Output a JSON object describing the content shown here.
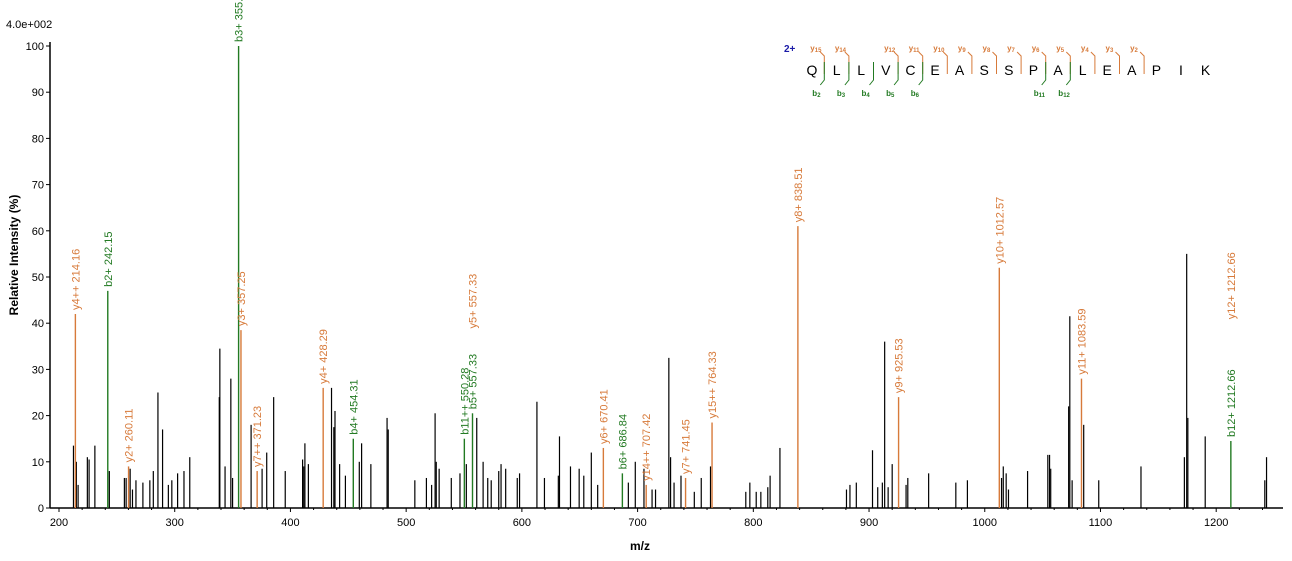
{
  "colors": {
    "black": "#000000",
    "y_ion": "#d77a3a",
    "b_ion": "#227a22",
    "charge": "#1a1aa8"
  },
  "chart_data": {
    "type": "bar",
    "scale_label": "4.0e+002",
    "xlabel": "m/z",
    "ylabel": "Relative   Intensity (%)",
    "xlim": [
      200,
      1250
    ],
    "ylim": [
      0,
      100
    ],
    "xticks": [
      200,
      300,
      400,
      500,
      600,
      700,
      800,
      900,
      1000,
      1100,
      1200
    ],
    "yticks": [
      0,
      10,
      20,
      30,
      40,
      50,
      60,
      70,
      80,
      90,
      100
    ],
    "peaks": [
      [
        212.5,
        13.5
      ],
      [
        215.0,
        10
      ],
      [
        216.5,
        5
      ],
      [
        224.5,
        11
      ],
      [
        226.0,
        10.5
      ],
      [
        231.0,
        13.5
      ],
      [
        243.5,
        8
      ],
      [
        256.5,
        6.5
      ],
      [
        258.0,
        6.5
      ],
      [
        261.5,
        8.5
      ],
      [
        263.5,
        4
      ],
      [
        266.5,
        6
      ],
      [
        272.5,
        5.5
      ],
      [
        278.5,
        6
      ],
      [
        281.5,
        8
      ],
      [
        285.5,
        25
      ],
      [
        289.5,
        17
      ],
      [
        294.5,
        5
      ],
      [
        297.5,
        6
      ],
      [
        302.5,
        7.5
      ],
      [
        308.0,
        8
      ],
      [
        313.0,
        11
      ],
      [
        338.5,
        24
      ],
      [
        339.0,
        34.5
      ],
      [
        343.5,
        9
      ],
      [
        348.5,
        28
      ],
      [
        350.0,
        6.5
      ],
      [
        366.0,
        18
      ],
      [
        375.5,
        8.5
      ],
      [
        379.5,
        12
      ],
      [
        385.5,
        24
      ],
      [
        395.5,
        8
      ],
      [
        410.5,
        10.5
      ],
      [
        411.5,
        9
      ],
      [
        412.5,
        14
      ],
      [
        415.5,
        9.5
      ],
      [
        435.5,
        26
      ],
      [
        437.5,
        17.5
      ],
      [
        438.5,
        21
      ],
      [
        442.5,
        9.5
      ],
      [
        447.5,
        7
      ],
      [
        459.5,
        10
      ],
      [
        461.5,
        14
      ],
      [
        469.5,
        9.5
      ],
      [
        483.5,
        19.5
      ],
      [
        484.5,
        17
      ],
      [
        507.5,
        6
      ],
      [
        517.5,
        6.5
      ],
      [
        522.0,
        5
      ],
      [
        525.0,
        20.5
      ],
      [
        526.0,
        10
      ],
      [
        528.5,
        8.5
      ],
      [
        539.0,
        6.5
      ],
      [
        546.5,
        7.5
      ],
      [
        552.0,
        9.5
      ],
      [
        561.0,
        19.5
      ],
      [
        566.5,
        10
      ],
      [
        570.5,
        6.5
      ],
      [
        573.5,
        6
      ],
      [
        580.0,
        8
      ],
      [
        582.0,
        9.5
      ],
      [
        586.0,
        8.5
      ],
      [
        596.0,
        6.5
      ],
      [
        598.0,
        7.5
      ],
      [
        613.0,
        23
      ],
      [
        619.5,
        6.5
      ],
      [
        631.5,
        7
      ],
      [
        632.5,
        15.5
      ],
      [
        642.0,
        9
      ],
      [
        649.5,
        8.5
      ],
      [
        653.5,
        7
      ],
      [
        660.0,
        12
      ],
      [
        665.5,
        5
      ],
      [
        692.0,
        5.5
      ],
      [
        698.0,
        10
      ],
      [
        705.5,
        8.5
      ],
      [
        712.5,
        4
      ],
      [
        715.5,
        4
      ],
      [
        727.0,
        32.5
      ],
      [
        728.5,
        11
      ],
      [
        731.5,
        5.5
      ],
      [
        737.5,
        7
      ],
      [
        749.0,
        3.5
      ],
      [
        755.0,
        6.5
      ],
      [
        763.0,
        9
      ],
      [
        793.5,
        3.5
      ],
      [
        797.0,
        5.5
      ],
      [
        802.5,
        3.5
      ],
      [
        806.5,
        3.5
      ],
      [
        812.5,
        4.5
      ],
      [
        814.5,
        7
      ],
      [
        823.0,
        13
      ],
      [
        880.5,
        4
      ],
      [
        883.5,
        5
      ],
      [
        889.0,
        5.5
      ],
      [
        903.0,
        12.5
      ],
      [
        907.5,
        4.5
      ],
      [
        911.5,
        5.5
      ],
      [
        913.5,
        36
      ],
      [
        916.5,
        4.5
      ],
      [
        920.0,
        9.5
      ],
      [
        932.0,
        5
      ],
      [
        933.5,
        6.5
      ],
      [
        951.5,
        7.5
      ],
      [
        975.0,
        5.5
      ],
      [
        985.0,
        6
      ],
      [
        1014.5,
        6.5
      ],
      [
        1016.0,
        9
      ],
      [
        1018.5,
        7.5
      ],
      [
        1020.5,
        4
      ],
      [
        1037.0,
        8
      ],
      [
        1054.5,
        11.5
      ],
      [
        1056.0,
        11.5
      ],
      [
        1057.0,
        8.5
      ],
      [
        1072.5,
        22
      ],
      [
        1073.5,
        41.5
      ],
      [
        1075.5,
        6
      ],
      [
        1085.5,
        18
      ],
      [
        1098.5,
        6
      ],
      [
        1135.0,
        9
      ],
      [
        1172.5,
        11
      ],
      [
        1174.5,
        55
      ],
      [
        1175.5,
        19.5
      ],
      [
        1190.5,
        15.5
      ],
      [
        1242.0,
        6
      ],
      [
        1243.5,
        11
      ]
    ],
    "annotated_peaks": [
      {
        "mz": 214.16,
        "h": 42,
        "ion": "y",
        "text": "y4++ 214.16"
      },
      {
        "mz": 242.15,
        "h": 47,
        "ion": "b",
        "text": "b2+ 242.15"
      },
      {
        "mz": 260.11,
        "h": 9,
        "ion": "y",
        "text": "y2+ 260.11"
      },
      {
        "mz": 355.2,
        "h": 100,
        "ion": "b",
        "text": "b3+ 355.2"
      },
      {
        "mz": 357.25,
        "h": 38.5,
        "ion": "y",
        "text": "y3+ 357.25"
      },
      {
        "mz": 371.23,
        "h": 8,
        "ion": "y",
        "text": "y7++ 371.23"
      },
      {
        "mz": 428.29,
        "h": 26,
        "ion": "y",
        "text": "y4+ 428.29"
      },
      {
        "mz": 454.31,
        "h": 15,
        "ion": "b",
        "text": "b4+ 454.31"
      },
      {
        "mz": 550.28,
        "h": 15,
        "ion": "b",
        "text": "b11++ 550.28"
      },
      {
        "mz": 557.33,
        "h": 20.5,
        "ion": "b",
        "text": "b5+ 557.33"
      },
      {
        "mz": 557.33,
        "h": 38,
        "ion": "y",
        "text": "y5+ 557.33",
        "nodraw": true
      },
      {
        "mz": 670.41,
        "h": 13,
        "ion": "y",
        "text": "y6+ 670.41"
      },
      {
        "mz": 686.84,
        "h": 7.5,
        "ion": "b",
        "text": "b6+ 686.84"
      },
      {
        "mz": 707.42,
        "h": 5,
        "ion": "y",
        "text": "y14++ 707.42"
      },
      {
        "mz": 741.45,
        "h": 6.5,
        "ion": "y",
        "text": "y7+ 741.45"
      },
      {
        "mz": 764.33,
        "h": 18.5,
        "ion": "y",
        "text": "y15++ 764.33"
      },
      {
        "mz": 838.51,
        "h": 61,
        "ion": "y",
        "text": "y8+ 838.51"
      },
      {
        "mz": 925.53,
        "h": 24,
        "ion": "y",
        "text": "y9+ 925.53"
      },
      {
        "mz": 1012.57,
        "h": 52,
        "ion": "y",
        "text": "y10+ 1012.57"
      },
      {
        "mz": 1083.59,
        "h": 28,
        "ion": "y",
        "text": "y11+ 1083.59"
      },
      {
        "mz": 1212.66,
        "h": 14.5,
        "ion": "b",
        "text": "b12+ 1212.66"
      },
      {
        "mz": 1212.66,
        "h": 40,
        "ion": "y",
        "text": "y12+ 1212.66",
        "nodraw": true
      }
    ],
    "sequence": {
      "charge": "2+",
      "residues": [
        "Q",
        "L",
        "L",
        "V",
        "C",
        "E",
        "A",
        "S",
        "S",
        "P",
        "A",
        "L",
        "E",
        "A",
        "P",
        "I",
        "K"
      ],
      "y_ions": [
        {
          "n": "15",
          "after": 1
        },
        {
          "n": "14",
          "after": 2
        },
        {
          "n": "12",
          "after": 4
        },
        {
          "n": "11",
          "after": 5
        },
        {
          "n": "10",
          "after": 6
        },
        {
          "n": "9",
          "after": 7
        },
        {
          "n": "8",
          "after": 8
        },
        {
          "n": "7",
          "after": 9
        },
        {
          "n": "6",
          "after": 10
        },
        {
          "n": "5",
          "after": 11
        },
        {
          "n": "4",
          "after": 12
        },
        {
          "n": "3",
          "after": 13
        },
        {
          "n": "2",
          "after": 14
        }
      ],
      "b_ions": [
        {
          "n": "2",
          "after": 1
        },
        {
          "n": "3",
          "after": 2
        },
        {
          "n": "4",
          "after": 3
        },
        {
          "n": "5",
          "after": 4
        },
        {
          "n": "6",
          "after": 5
        },
        {
          "n": "11",
          "after": 10
        },
        {
          "n": "12",
          "after": 11
        }
      ]
    }
  }
}
